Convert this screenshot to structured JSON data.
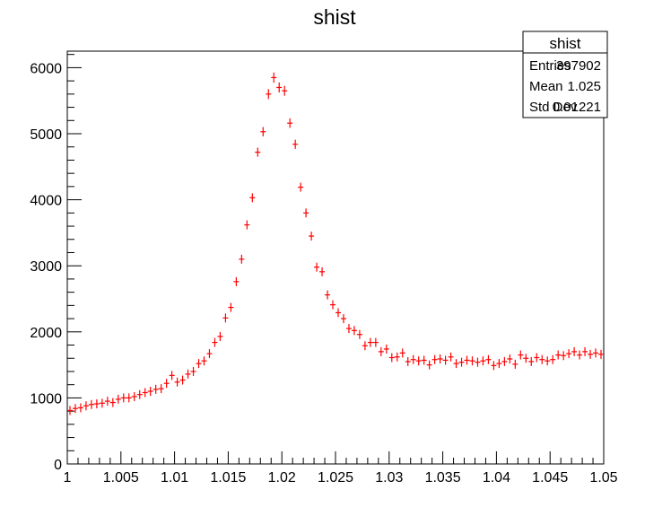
{
  "chart_data": {
    "type": "scatter",
    "title": "shist",
    "xlabel": "",
    "ylabel": "",
    "xlim": [
      1.0,
      1.05
    ],
    "ylim": [
      0,
      6250
    ],
    "grid": false,
    "marker_color": "#ff0000",
    "bin_width": 0.0005,
    "x_ticks": [
      1,
      1.005,
      1.01,
      1.015,
      1.02,
      1.025,
      1.03,
      1.035,
      1.04,
      1.045,
      1.05
    ],
    "x_tick_labels": [
      "1",
      "1.005",
      "1.01",
      "1.015",
      "1.02",
      "1.025",
      "1.03",
      "1.035",
      "1.04",
      "1.045",
      "1.05"
    ],
    "y_ticks": [
      0,
      1000,
      2000,
      3000,
      4000,
      5000,
      6000
    ],
    "y_tick_labels": [
      "0",
      "1000",
      "2000",
      "3000",
      "4000",
      "5000",
      "6000"
    ],
    "series": [
      {
        "x": [
          1.00025,
          1.00075,
          1.00125,
          1.00175,
          1.00225,
          1.00275,
          1.00325,
          1.00375,
          1.00425,
          1.00475,
          1.00525,
          1.00575,
          1.00625,
          1.00675,
          1.00725,
          1.00775,
          1.00825,
          1.00875,
          1.00925,
          1.00975,
          1.01025,
          1.01075,
          1.01125,
          1.01175,
          1.01225,
          1.01275,
          1.01325,
          1.01375,
          1.01425,
          1.01475,
          1.01525,
          1.01575,
          1.01625,
          1.01675,
          1.01725,
          1.01775,
          1.01825,
          1.01875,
          1.01925,
          1.01975,
          1.02025,
          1.02075,
          1.02125,
          1.02175,
          1.02225,
          1.02275,
          1.02325,
          1.02375,
          1.02425,
          1.02475,
          1.02525,
          1.02575,
          1.02625,
          1.02675,
          1.02725,
          1.02775,
          1.02825,
          1.02875,
          1.02925,
          1.02975,
          1.03025,
          1.03075,
          1.03125,
          1.03175,
          1.03225,
          1.03275,
          1.03325,
          1.03375,
          1.03425,
          1.03475,
          1.03525,
          1.03575,
          1.03625,
          1.03675,
          1.03725,
          1.03775,
          1.03825,
          1.03875,
          1.03925,
          1.03975,
          1.04025,
          1.04075,
          1.04125,
          1.04175,
          1.04225,
          1.04275,
          1.04325,
          1.04375,
          1.04425,
          1.04475,
          1.04525,
          1.04575,
          1.04625,
          1.04675,
          1.04725,
          1.04775,
          1.04825,
          1.04875,
          1.04925,
          1.04975
        ],
        "y": [
          810,
          840,
          850,
          880,
          900,
          910,
          920,
          950,
          930,
          980,
          1000,
          1000,
          1020,
          1050,
          1080,
          1100,
          1130,
          1140,
          1220,
          1340,
          1240,
          1270,
          1360,
          1400,
          1520,
          1560,
          1670,
          1840,
          1930,
          2210,
          2370,
          2760,
          3100,
          3620,
          4030,
          4720,
          5030,
          5600,
          5850,
          5700,
          5650,
          5160,
          4840,
          4190,
          3800,
          3450,
          2980,
          2910,
          2560,
          2410,
          2290,
          2200,
          2050,
          2020,
          1960,
          1790,
          1840,
          1840,
          1700,
          1740,
          1610,
          1620,
          1680,
          1550,
          1580,
          1560,
          1570,
          1500,
          1580,
          1590,
          1570,
          1620,
          1520,
          1540,
          1570,
          1560,
          1540,
          1560,
          1580,
          1490,
          1520,
          1550,
          1590,
          1510,
          1650,
          1600,
          1550,
          1610,
          1580,
          1560,
          1580,
          1650,
          1640,
          1670,
          1700,
          1650,
          1700,
          1660,
          1680,
          1660
        ]
      }
    ]
  },
  "stats": {
    "title": "shist",
    "rows": [
      {
        "label": "Entries",
        "value": "397902"
      },
      {
        "label": "Mean",
        "value": "1.025"
      },
      {
        "label": "Std Dev",
        "value": "0.01221"
      }
    ]
  }
}
